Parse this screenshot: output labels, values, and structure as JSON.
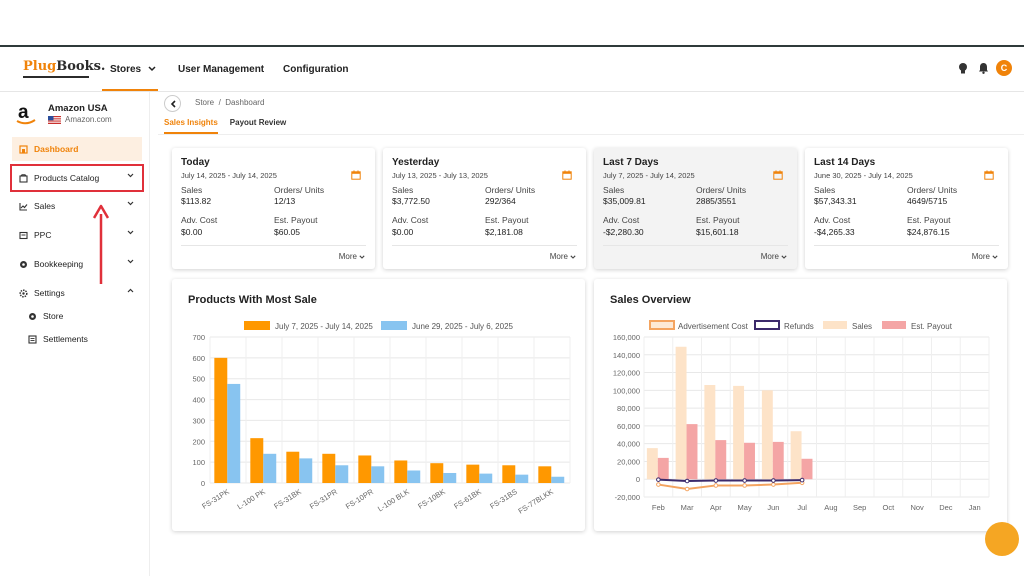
{
  "navbar": {
    "logo_left": "Plug",
    "logo_right": "Books.",
    "items": [
      "Stores",
      "User Management",
      "Configuration"
    ],
    "avatar_initial": "C"
  },
  "sidebar": {
    "store_name": "Amazon USA",
    "store_domain": "Amazon.com",
    "items": [
      "Dashboard",
      "Products Catalog",
      "Sales",
      "PPC",
      "Bookkeeping",
      "Settings"
    ],
    "sub_items": [
      "Store",
      "Settlements"
    ]
  },
  "breadcrumb": {
    "store": "Store",
    "sep": "/",
    "page": "Dashboard"
  },
  "tabs": [
    "Sales Insights",
    "Payout Review"
  ],
  "cards": [
    {
      "title": "Today",
      "date": "July 14, 2025 - July 14, 2025",
      "sales_label": "Sales",
      "sales": "$113.82",
      "orders_label": "Orders/ Units",
      "orders": "12/13",
      "adv_label": "Adv. Cost",
      "adv": "$0.00",
      "payout_label": "Est. Payout",
      "payout": "$60.05",
      "more": "More"
    },
    {
      "title": "Yesterday",
      "date": "July 13, 2025 - July 13, 2025",
      "sales_label": "Sales",
      "sales": "$3,772.50",
      "orders_label": "Orders/ Units",
      "orders": "292/364",
      "adv_label": "Adv. Cost",
      "adv": "$0.00",
      "payout_label": "Est. Payout",
      "payout": "$2,181.08",
      "more": "More"
    },
    {
      "title": "Last 7 Days",
      "date": "July 7, 2025 - July 14, 2025",
      "sales_label": "Sales",
      "sales": "$35,009.81",
      "orders_label": "Orders/ Units",
      "orders": "2885/3551",
      "adv_label": "Adv. Cost",
      "adv": "-$2,280.30",
      "payout_label": "Est. Payout",
      "payout": "$15,601.18",
      "more": "More"
    },
    {
      "title": "Last 14 Days",
      "date": "June 30, 2025 - July 14, 2025",
      "sales_label": "Sales",
      "sales": "$57,343.31",
      "orders_label": "Orders/ Units",
      "orders": "4649/5715",
      "adv_label": "Adv. Cost",
      "adv": "-$4,265.33",
      "payout_label": "Est. Payout",
      "payout": "$24,876.15",
      "more": "More"
    }
  ],
  "colors": {
    "accent": "#f0830a",
    "bar_current": "#ff9800",
    "bar_previous": "#88c4f0",
    "adv": "#f4a460",
    "refunds": "#3c2a6b",
    "sales": "#fde3c8",
    "payout": "#f4a5a5",
    "highlight_box": "#e0303a"
  },
  "chart_data": [
    {
      "type": "bar",
      "title": "Products With Most Sale",
      "categories": [
        "FS-31PK",
        "L-100 PK",
        "FS-31BK",
        "FS-31PR",
        "FS-10PR",
        "L-100 BLK",
        "FS-10BK",
        "FS-61BK",
        "FS-31BS",
        "FS-77BLKK"
      ],
      "series": [
        {
          "name": "July 7, 2025 - July 14, 2025",
          "values": [
            600,
            215,
            150,
            140,
            132,
            108,
            95,
            88,
            85,
            80
          ]
        },
        {
          "name": "June 29, 2025 - July 6, 2025",
          "values": [
            475,
            140,
            118,
            85,
            80,
            60,
            48,
            45,
            40,
            30
          ]
        }
      ],
      "yticks": [
        "0",
        "100",
        "200",
        "300",
        "400",
        "500",
        "600",
        "700"
      ],
      "ylim": [
        0,
        700
      ],
      "legend": "top"
    },
    {
      "type": "bar",
      "title": "Sales Overview",
      "categories": [
        "Feb",
        "Mar",
        "Apr",
        "May",
        "Jun",
        "Jul",
        "Aug",
        "Sep",
        "Oct",
        "Nov",
        "Dec",
        "Jan"
      ],
      "series": [
        {
          "name": "Sales",
          "values": [
            35000,
            149000,
            106000,
            105000,
            100000,
            54000,
            null,
            null,
            null,
            null,
            null,
            null
          ]
        },
        {
          "name": "Est. Payout",
          "values": [
            24000,
            62000,
            44000,
            41000,
            42000,
            23000,
            null,
            null,
            null,
            null,
            null,
            null
          ]
        },
        {
          "name": "Advertisement Cost",
          "values": [
            -6000,
            -11000,
            -7000,
            -7000,
            -6000,
            -4000,
            null,
            null,
            null,
            null,
            null,
            null
          ]
        },
        {
          "name": "Refunds",
          "values": [
            -500,
            -2000,
            -1500,
            -1500,
            -1500,
            -1000,
            null,
            null,
            null,
            null,
            null,
            null
          ]
        }
      ],
      "yticks": [
        "-20,000",
        "0",
        "20,000",
        "40,000",
        "60,000",
        "80,000",
        "100,000",
        "120,000",
        "140,000",
        "160,000"
      ],
      "ylim": [
        -20000,
        160000
      ],
      "legend": "top"
    }
  ]
}
